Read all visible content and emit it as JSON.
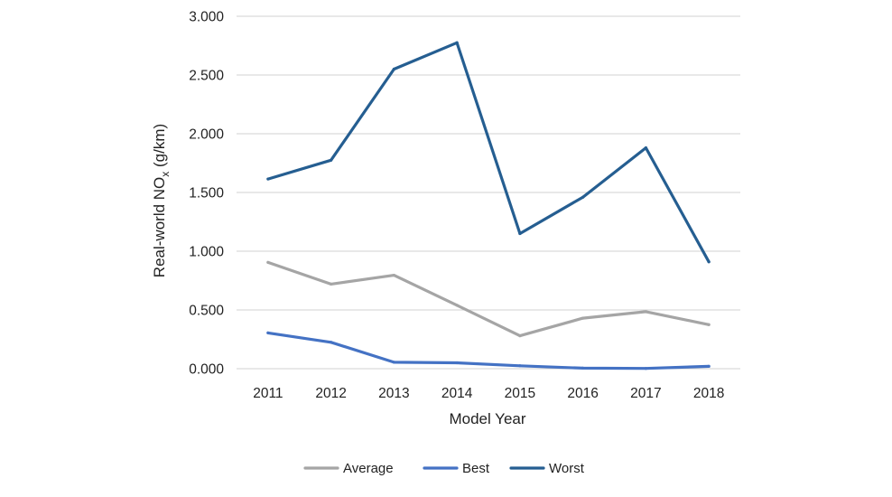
{
  "chart_data": {
    "type": "line",
    "x": [
      "2011",
      "2012",
      "2013",
      "2014",
      "2015",
      "2016",
      "2017",
      "2018"
    ],
    "xlabel": "Model Year",
    "ylabel": {
      "main": "Real-world NO",
      "sub": "x",
      "unit": " (g/km)"
    },
    "ylim": [
      0,
      3
    ],
    "yticks": [
      "0.000",
      "0.500",
      "1.000",
      "1.500",
      "2.000",
      "2.500",
      "3.000"
    ],
    "grid": true,
    "legend_position": "bottom",
    "series": [
      {
        "name": "Average",
        "color": "#a5a5a5",
        "values": [
          0.905,
          0.72,
          0.795,
          0.54,
          0.28,
          0.43,
          0.485,
          0.375
        ]
      },
      {
        "name": "Best",
        "color": "#4472c4",
        "values": [
          0.305,
          0.225,
          0.055,
          0.05,
          0.025,
          0.005,
          0.002,
          0.02
        ]
      },
      {
        "name": "Worst",
        "color": "#255e91",
        "values": [
          1.615,
          1.775,
          2.55,
          2.775,
          1.15,
          1.46,
          1.88,
          0.91
        ]
      }
    ]
  }
}
